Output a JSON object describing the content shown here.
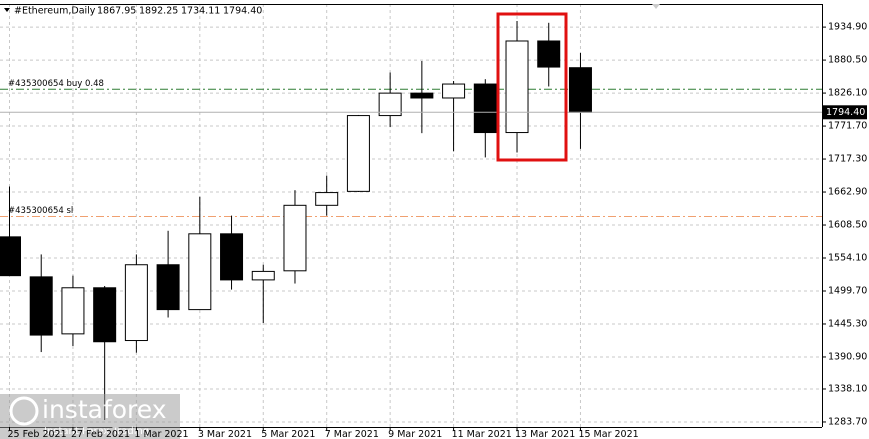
{
  "chart_data": {
    "type": "candlestick",
    "title": "#Ethereum,Daily",
    "last_labels": {
      "open": "1867.95",
      "high": "1892.25",
      "low": "1734.11",
      "close": "1794.40"
    },
    "categories": [
      "25 Feb 2021",
      null,
      "27 Feb 2021",
      null,
      "1 Mar 2021",
      null,
      "3 Mar 2021",
      null,
      "5 Mar 2021",
      null,
      "7 Mar 2021",
      null,
      "9 Mar 2021",
      null,
      "11 Mar 2021",
      null,
      "13 Mar 2021",
      null,
      "15 Mar 2021"
    ],
    "open": [
      1589,
      1523,
      1429,
      1505,
      1418,
      1543,
      1469,
      1594,
      1518,
      1533,
      1641,
      1664,
      1789,
      1826,
      1818,
      1841,
      1761,
      1912,
      1867.95
    ],
    "high": [
      1672,
      1560,
      1525,
      1508,
      1560,
      1599,
      1655,
      1624,
      1543,
      1666,
      1690,
      1790,
      1860,
      1879,
      1846,
      1849,
      1945,
      1942,
      1892.25
    ],
    "low": [
      1525,
      1399,
      1409,
      1287,
      1398,
      1456,
      1469,
      1502,
      1447,
      1512,
      1624,
      1663,
      1770,
      1760,
      1730,
      1720,
      1728,
      1837,
      1734.11
    ],
    "close": [
      1525,
      1427,
      1505,
      1416,
      1543,
      1469,
      1594,
      1518,
      1532,
      1641,
      1662,
      1789,
      1826,
      1818,
      1841,
      1761,
      1912,
      1869,
      1794.4
    ],
    "ylim": [
      1275.4,
      1973.0
    ],
    "yticks": [
      {
        "value": 1283.7,
        "label": "1283.70"
      },
      {
        "value": 1338.1,
        "label": "1338.10"
      },
      {
        "value": 1390.9,
        "label": "1390.90"
      },
      {
        "value": 1445.3,
        "label": "1445.30"
      },
      {
        "value": 1499.7,
        "label": "1499.70"
      },
      {
        "value": 1554.1,
        "label": "1554.10"
      },
      {
        "value": 1608.5,
        "label": "1608.50"
      },
      {
        "value": 1662.9,
        "label": "1662.90"
      },
      {
        "value": 1717.3,
        "label": "1717.30"
      },
      {
        "value": 1771.7,
        "label": "1771.70"
      },
      {
        "value": 1826.1,
        "label": "1826.10"
      },
      {
        "value": 1880.5,
        "label": "1880.50"
      },
      {
        "value": 1934.9,
        "label": "1934.90"
      }
    ],
    "grid": true,
    "levels": [
      {
        "label": "#435300654 buy 0.48",
        "value": 1832.4,
        "color": "#2e7d32"
      },
      {
        "label": "#435300654 sl",
        "value": 1622.5,
        "color": "#f0a070"
      }
    ],
    "watermark": {
      "brand": "instaforex",
      "tagline": "Instant Forex Trading"
    }
  }
}
